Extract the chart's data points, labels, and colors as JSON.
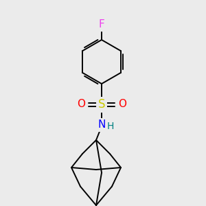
{
  "background_color": "#ebebeb",
  "bond_color": "#000000",
  "atom_colors": {
    "F": "#ed40ed",
    "S": "#cccc00",
    "O": "#ff0000",
    "N": "#0000ff",
    "H": "#008080",
    "C": "#000000"
  },
  "figsize": [
    3.0,
    3.0
  ],
  "dpi": 100
}
